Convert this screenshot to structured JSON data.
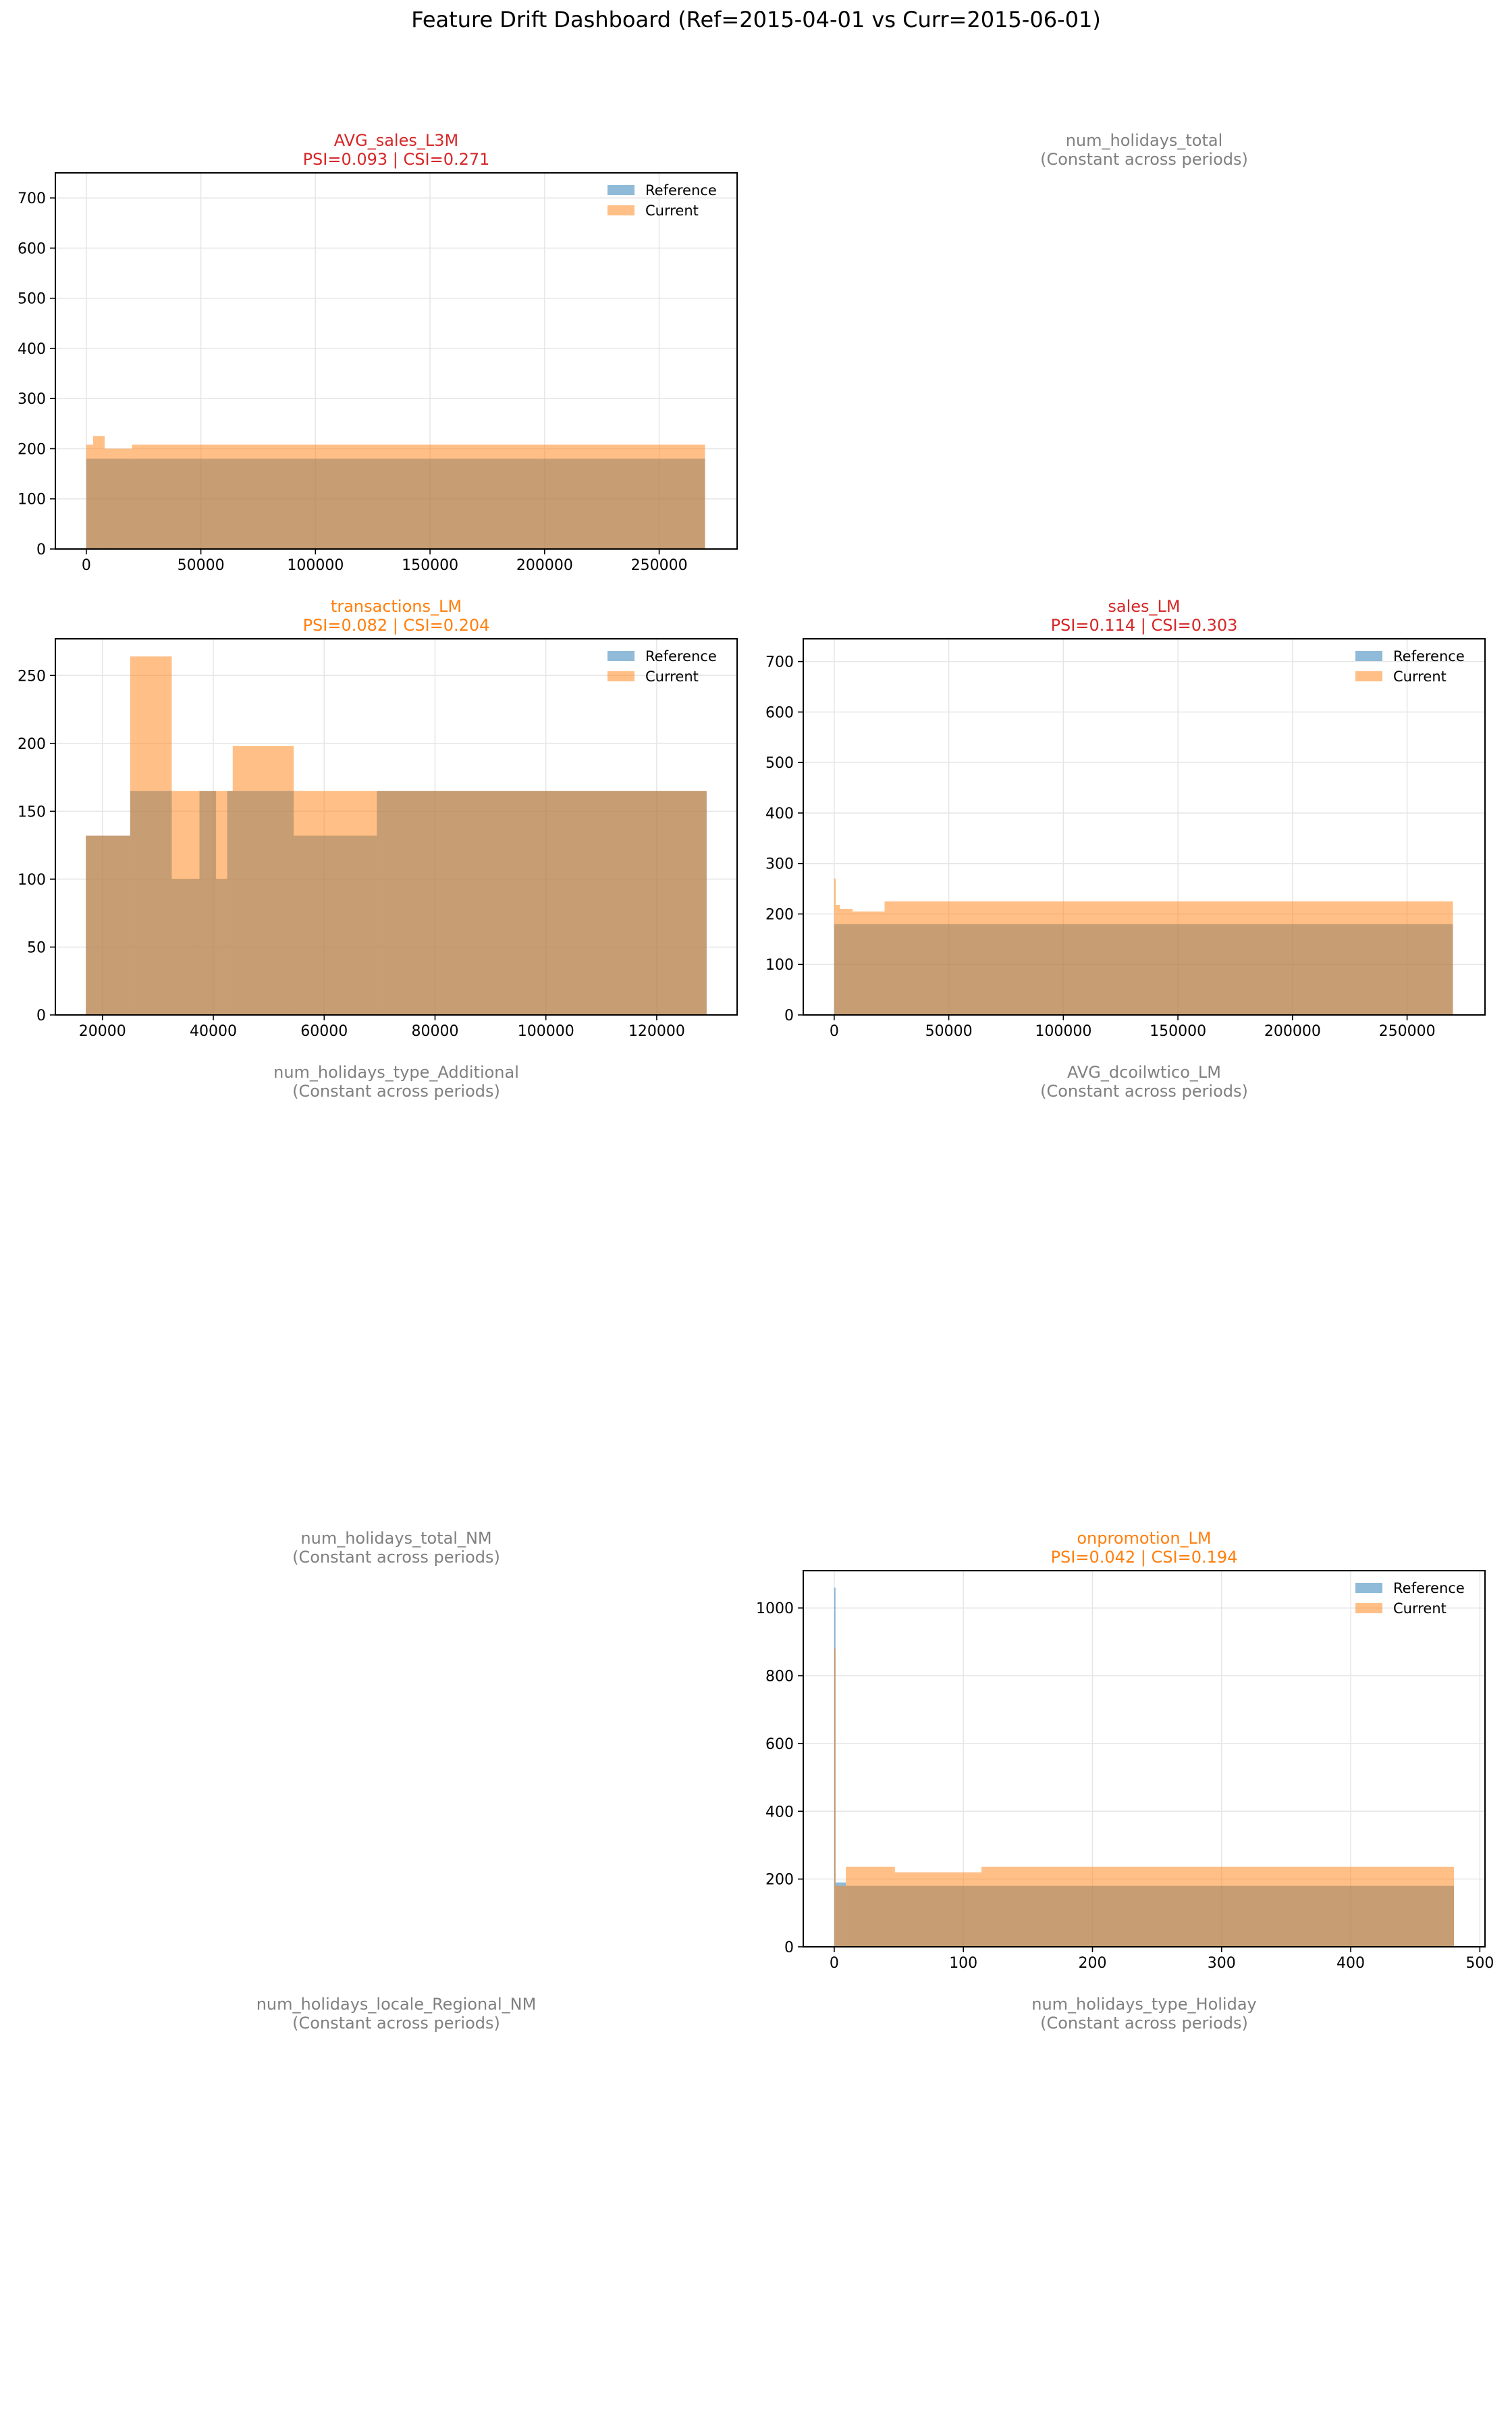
{
  "figure": {
    "title": "Feature Drift Dashboard (Ref=2015-04-01 vs Curr=2015-06-01)",
    "legend_reference": "Reference",
    "legend_current": "Current",
    "colors": {
      "reference": "#1f77b4",
      "current": "#ff7f0e",
      "high_drift": "#d62728",
      "moderate_drift": "#ff7f0e",
      "constant": "#808080"
    }
  },
  "chart_data": [
    {
      "type": "bar",
      "subtype": "overlaid-histogram",
      "feature": "AVG_sales_L3M",
      "title_line1": "AVG_sales_L3M",
      "title_line2": "PSI=0.093 | CSI=0.271",
      "status": "high_drift",
      "xlim": [
        -13500,
        284000
      ],
      "ylim": [
        0,
        750
      ],
      "xticks": [
        0,
        50000,
        100000,
        150000,
        200000,
        250000
      ],
      "yticks": [
        0,
        100,
        200,
        300,
        400,
        500,
        600,
        700
      ],
      "legend": "top-right",
      "grid": true,
      "reference": [
        [
          0,
          270000,
          180
        ]
      ],
      "current": [
        [
          0,
          3000,
          208
        ],
        [
          3000,
          8000,
          225
        ],
        [
          8000,
          20000,
          200
        ],
        [
          20000,
          270000,
          208
        ]
      ]
    },
    {
      "type": "constant",
      "feature": "num_holidays_total",
      "title_line1": "num_holidays_total",
      "title_line2": "(Constant across periods)",
      "status": "constant"
    },
    {
      "type": "bar",
      "subtype": "overlaid-histogram",
      "feature": "transactions_LM",
      "title_line1": "transactions_LM",
      "title_line2": "PSI=0.082 | CSI=0.204",
      "status": "moderate_drift",
      "xlim": [
        11500,
        134500
      ],
      "ylim": [
        0,
        277
      ],
      "xticks": [
        20000,
        40000,
        60000,
        80000,
        100000,
        120000
      ],
      "yticks": [
        0,
        50,
        100,
        150,
        200,
        250
      ],
      "legend": "top-right",
      "grid": true,
      "reference": [
        [
          17000,
          25000,
          132
        ],
        [
          25000,
          32500,
          165
        ],
        [
          32500,
          37500,
          100
        ],
        [
          37500,
          40500,
          165
        ],
        [
          40500,
          42500,
          100
        ],
        [
          42500,
          54500,
          165
        ],
        [
          54500,
          69500,
          132
        ],
        [
          69500,
          129000,
          165
        ]
      ],
      "current": [
        [
          17000,
          25000,
          132
        ],
        [
          25000,
          32500,
          264
        ],
        [
          32500,
          43500,
          165
        ],
        [
          43500,
          54500,
          198
        ],
        [
          54500,
          129000,
          165
        ]
      ]
    },
    {
      "type": "bar",
      "subtype": "overlaid-histogram",
      "feature": "sales_LM",
      "title_line1": "sales_LM",
      "title_line2": "PSI=0.114 | CSI=0.303",
      "status": "high_drift",
      "xlim": [
        -13500,
        284000
      ],
      "ylim": [
        0,
        745
      ],
      "xticks": [
        0,
        50000,
        100000,
        150000,
        200000,
        250000
      ],
      "yticks": [
        0,
        100,
        200,
        300,
        400,
        500,
        600,
        700
      ],
      "legend": "top-right",
      "grid": true,
      "reference": [
        [
          0,
          270000,
          180
        ]
      ],
      "current": [
        [
          0,
          700,
          270
        ],
        [
          700,
          2500,
          218
        ],
        [
          2500,
          8000,
          210
        ],
        [
          8000,
          22000,
          205
        ],
        [
          22000,
          270000,
          225
        ]
      ]
    },
    {
      "type": "constant",
      "feature": "num_holidays_type_Additional",
      "title_line1": "num_holidays_type_Additional",
      "title_line2": "(Constant across periods)",
      "status": "constant"
    },
    {
      "type": "constant",
      "feature": "AVG_dcoilwtico_LM",
      "title_line1": "AVG_dcoilwtico_LM",
      "title_line2": "(Constant across periods)",
      "status": "constant"
    },
    {
      "type": "constant",
      "feature": "num_holidays_total_NM",
      "title_line1": "num_holidays_total_NM",
      "title_line2": "(Constant across periods)",
      "status": "constant"
    },
    {
      "type": "bar",
      "subtype": "overlaid-histogram",
      "feature": "onpromotion_LM",
      "title_line1": "onpromotion_LM",
      "title_line2": "PSI=0.042 | CSI=0.194",
      "status": "moderate_drift",
      "xlim": [
        -24,
        504
      ],
      "ylim": [
        0,
        1110
      ],
      "xticks": [
        0,
        100,
        200,
        300,
        400,
        500
      ],
      "yticks": [
        0,
        200,
        400,
        600,
        800,
        1000
      ],
      "legend": "top-right",
      "grid": true,
      "reference": [
        [
          0,
          1,
          1060
        ],
        [
          1,
          9,
          190
        ],
        [
          9,
          480,
          180
        ]
      ],
      "current": [
        [
          0,
          1,
          880
        ],
        [
          1,
          9,
          180
        ],
        [
          9,
          47,
          236
        ],
        [
          47,
          114,
          220
        ],
        [
          114,
          480,
          236
        ]
      ]
    },
    {
      "type": "constant",
      "feature": "num_holidays_locale_Regional_NM",
      "title_line1": "num_holidays_locale_Regional_NM",
      "title_line2": "(Constant across periods)",
      "status": "constant"
    },
    {
      "type": "constant",
      "feature": "num_holidays_type_Holiday",
      "title_line1": "num_holidays_type_Holiday",
      "title_line2": "(Constant across periods)",
      "status": "constant"
    }
  ]
}
